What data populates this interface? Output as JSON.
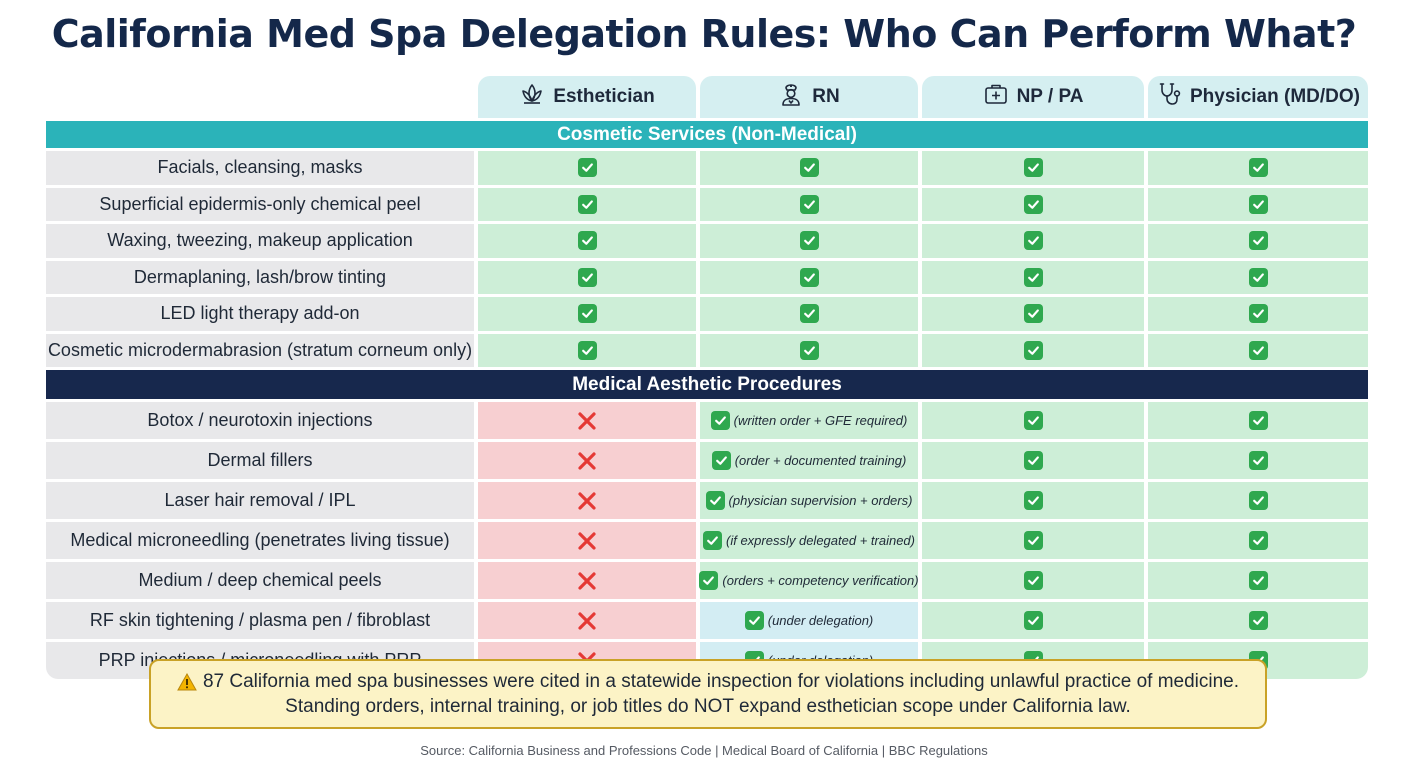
{
  "title": "California Med Spa Delegation Rules: Who Can Perform What?",
  "columns": [
    {
      "label": "Esthetician",
      "icon": "lotus-icon"
    },
    {
      "label": "RN",
      "icon": "nurse-icon"
    },
    {
      "label": "NP / PA",
      "icon": "medical-kit-icon"
    },
    {
      "label": "Physician (MD/DO)",
      "icon": "stethoscope-icon"
    }
  ],
  "sections": [
    {
      "title": "Cosmetic Services (Non-Medical)",
      "rows": [
        {
          "label": "Facials, cleansing, masks",
          "cells": [
            {
              "s": "check"
            },
            {
              "s": "check"
            },
            {
              "s": "check"
            },
            {
              "s": "check"
            }
          ]
        },
        {
          "label": "Superficial epidermis-only chemical peel",
          "cells": [
            {
              "s": "check"
            },
            {
              "s": "check"
            },
            {
              "s": "check"
            },
            {
              "s": "check"
            }
          ]
        },
        {
          "label": "Waxing, tweezing, makeup application",
          "cells": [
            {
              "s": "check"
            },
            {
              "s": "check"
            },
            {
              "s": "check"
            },
            {
              "s": "check"
            }
          ]
        },
        {
          "label": "Dermaplaning, lash/brow tinting",
          "cells": [
            {
              "s": "check"
            },
            {
              "s": "check"
            },
            {
              "s": "check"
            },
            {
              "s": "check"
            }
          ]
        },
        {
          "label": "LED light therapy add-on",
          "cells": [
            {
              "s": "check"
            },
            {
              "s": "check"
            },
            {
              "s": "check"
            },
            {
              "s": "check"
            }
          ]
        },
        {
          "label": "Cosmetic microdermabrasion (stratum corneum only)",
          "cells": [
            {
              "s": "check"
            },
            {
              "s": "check"
            },
            {
              "s": "check"
            },
            {
              "s": "check"
            }
          ]
        }
      ]
    },
    {
      "title": "Medical Aesthetic Procedures",
      "rows": [
        {
          "label": "Botox / neurotoxin injections",
          "cells": [
            {
              "s": "x"
            },
            {
              "s": "cond",
              "note": "(written order + GFE required)"
            },
            {
              "s": "check"
            },
            {
              "s": "check"
            }
          ]
        },
        {
          "label": "Dermal fillers",
          "cells": [
            {
              "s": "x"
            },
            {
              "s": "cond",
              "note": "(order + documented training)"
            },
            {
              "s": "check"
            },
            {
              "s": "check"
            }
          ]
        },
        {
          "label": "Laser hair removal / IPL",
          "cells": [
            {
              "s": "x"
            },
            {
              "s": "cond",
              "note": "(physician supervision + orders)"
            },
            {
              "s": "check"
            },
            {
              "s": "check"
            }
          ]
        },
        {
          "label": "Medical microneedling (penetrates living tissue)",
          "cells": [
            {
              "s": "x"
            },
            {
              "s": "cond",
              "note": "(if expressly delegated + trained)"
            },
            {
              "s": "check"
            },
            {
              "s": "check"
            }
          ]
        },
        {
          "label": "Medium / deep chemical peels",
          "cells": [
            {
              "s": "x"
            },
            {
              "s": "cond",
              "note": "(orders + competency verification)"
            },
            {
              "s": "check"
            },
            {
              "s": "check"
            }
          ]
        },
        {
          "label": "RF skin tightening / plasma pen / fibroblast",
          "cells": [
            {
              "s": "x"
            },
            {
              "s": "deleg",
              "note": "(under delegation)"
            },
            {
              "s": "check"
            },
            {
              "s": "check"
            }
          ]
        },
        {
          "label": "PRP injections / microneedling with PRP",
          "cells": [
            {
              "s": "x"
            },
            {
              "s": "deleg",
              "note": "(under delegation)"
            },
            {
              "s": "check"
            },
            {
              "s": "check"
            }
          ]
        }
      ]
    }
  ],
  "warning": {
    "icon": "warning-icon",
    "line1": "87 California med spa businesses were cited in a statewide inspection for violations including unlawful practice of medicine.",
    "line2": "Standing orders, internal training, or job titles do NOT expand esthetician scope under California law."
  },
  "source": "Source: California Business and Professions Code | Medical Board of California | BBC Regulations",
  "colors": {
    "title": "#14284a",
    "cosmetic_band": "#2bb3b9",
    "medical_band": "#17284d",
    "header_bg": "#d5eff1",
    "allowed_bg": "#cdeed7",
    "prohibited_bg": "#f7cfd1",
    "delegation_bg": "#d3edf3",
    "check": "#2fa84f",
    "x": "#e53935"
  }
}
